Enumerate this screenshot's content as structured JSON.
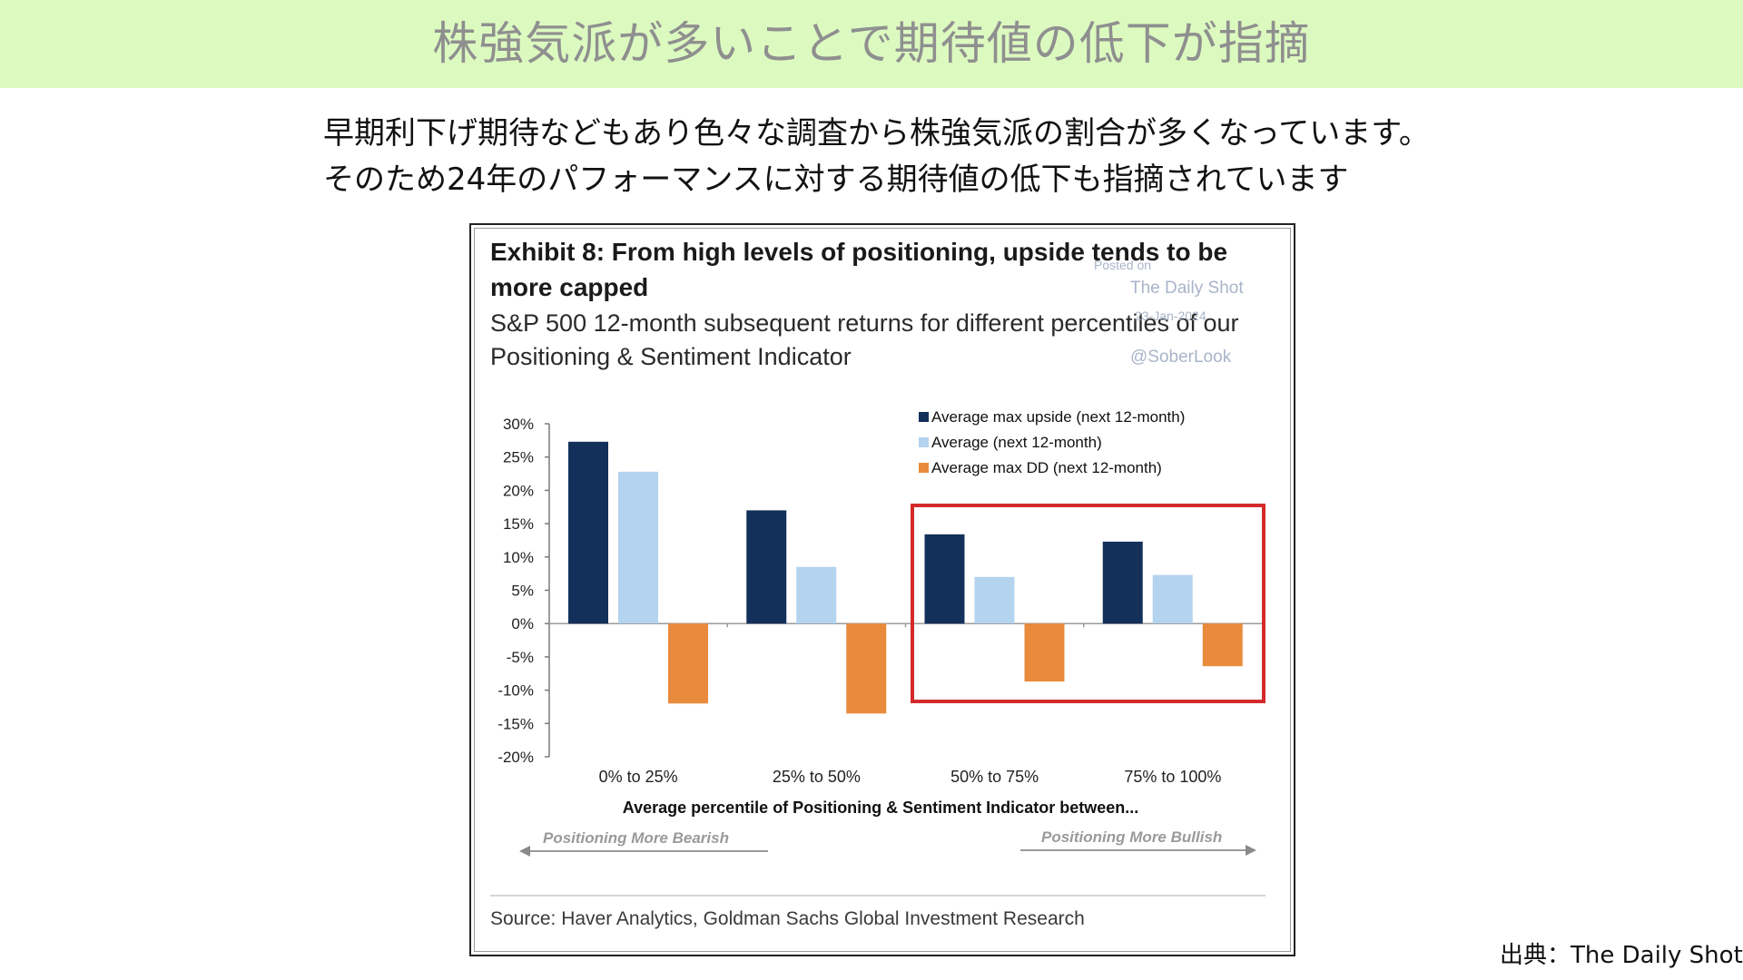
{
  "header": {
    "title": "株強気派が多いことで期待値の低下が指摘"
  },
  "intro": {
    "line1": "早期利下げ期待などもあり色々な調査から株強気派の割合が多くなっています。",
    "line2": "そのため24年のパフォーマンスに対する期待値の低下も指摘されています"
  },
  "figure": {
    "title": "Exhibit 8: From high levels of positioning, upside tends to be more capped",
    "subtitle": "S&P 500 12-month subsequent returns for different percentiles of our Positioning & Sentiment Indicator",
    "watermark": {
      "posted": "Posted on",
      "brand": "The Daily Shot",
      "date": "23-Jan-2024",
      "handle": "@SoberLook"
    },
    "direction_left": "Positioning More Bearish",
    "direction_right": "Positioning More Bullish",
    "source": "Source: Haver Analytics, Goldman Sachs Global Investment Research",
    "highlight_color": "#d42a2a"
  },
  "chart_data": {
    "type": "bar",
    "categories": [
      "0% to 25%",
      "25% to 50%",
      "50% to 75%",
      "75% to 100%"
    ],
    "series": [
      {
        "name": "Average max upside (next 12-month)",
        "values": [
          27.3,
          17.0,
          13.4,
          12.3
        ],
        "color": "#13305a"
      },
      {
        "name": "Average (next 12-month)",
        "values": [
          22.8,
          8.5,
          7.0,
          7.3
        ],
        "color": "#b3d3ef"
      },
      {
        "name": "Average max DD (next 12-month)",
        "values": [
          -12.0,
          -13.5,
          -8.7,
          -6.4
        ],
        "color": "#e88b3c"
      }
    ],
    "y_ticks": [
      "30%",
      "25%",
      "20%",
      "15%",
      "10%",
      "5%",
      "0%",
      "-5%",
      "-10%",
      "-15%",
      "-20%"
    ],
    "ylim": [
      -20,
      30
    ],
    "xlabel": "Average percentile of Positioning & Sentiment Indicator between...",
    "ylabel": "",
    "legend_position": "top-right",
    "grid": false
  },
  "credit": "出典：The  Daily Shot"
}
